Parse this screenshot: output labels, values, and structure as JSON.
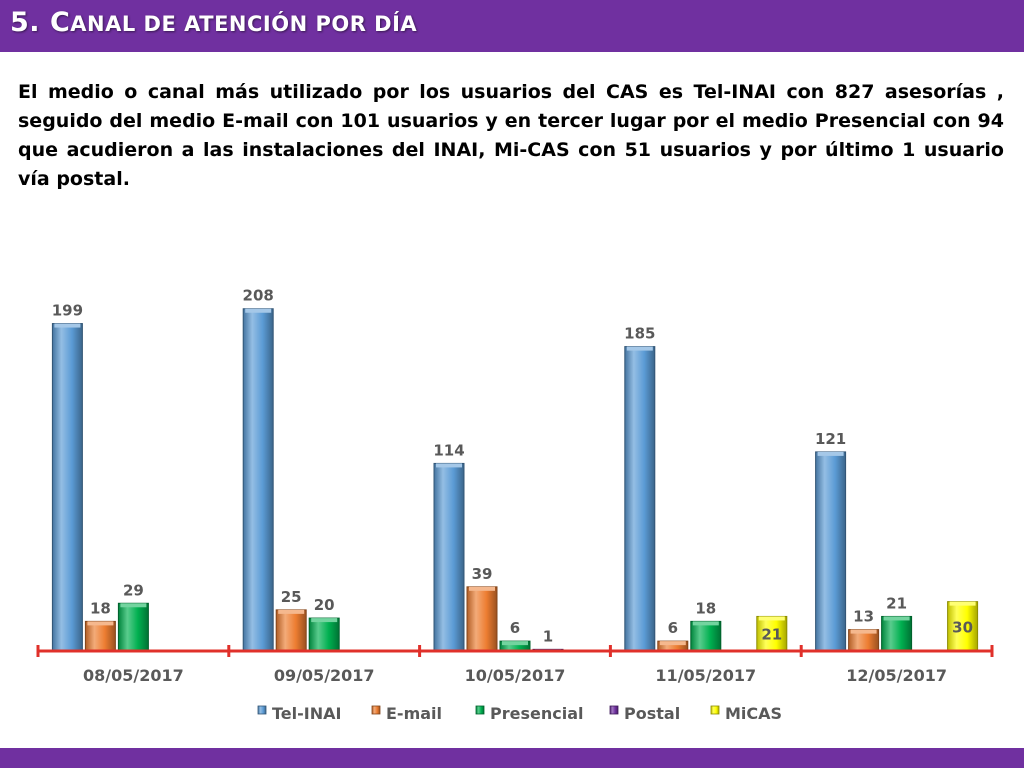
{
  "slide": {
    "title_lead": "5. C",
    "title_rest": "anal de atención por día",
    "intro": "El medio o canal más utilizado por los usuarios del CAS es Tel-INAI con 827 asesorías , seguido del medio E-mail con 101 usuarios y en tercer lugar por el medio Presencial con 94 que acudieron a las instalaciones del INAI, Mi-CAS con 51 usuarios y por último 1 usuario vía postal.",
    "accent_color": "#7030a0"
  },
  "chart_data": {
    "type": "bar",
    "categories": [
      "08/05/2017",
      "09/05/2017",
      "10/05/2017",
      "11/05/2017",
      "12/05/2017"
    ],
    "series": [
      {
        "name": "Tel-INAI",
        "color": "#5b9bd5",
        "values": [
          199,
          208,
          114,
          185,
          121
        ]
      },
      {
        "name": "E-mail",
        "color": "#ed7d31",
        "values": [
          18,
          25,
          39,
          6,
          13
        ]
      },
      {
        "name": "Presencial",
        "color": "#00b050",
        "values": [
          29,
          20,
          6,
          18,
          21
        ]
      },
      {
        "name": "Postal",
        "color": "#7030a0",
        "values": [
          0,
          0,
          1,
          0,
          0
        ]
      },
      {
        "name": "MiCAS",
        "color": "#ffff00",
        "values": [
          0,
          0,
          0,
          21,
          30
        ]
      }
    ],
    "data_labels": {
      "Tel-INAI": [
        "199",
        "208",
        "114",
        "185",
        "121"
      ],
      "E-mail": [
        "18",
        "25",
        "39",
        "6",
        "13"
      ],
      "Presencial": [
        "29",
        "20",
        "6",
        "18",
        "21"
      ],
      "Postal": [
        "",
        "",
        "1",
        "",
        ""
      ],
      "MiCAS": [
        "",
        "",
        "",
        "21",
        "30"
      ]
    },
    "ylim": [
      0,
      220
    ],
    "legend_position": "bottom",
    "grid": false
  }
}
